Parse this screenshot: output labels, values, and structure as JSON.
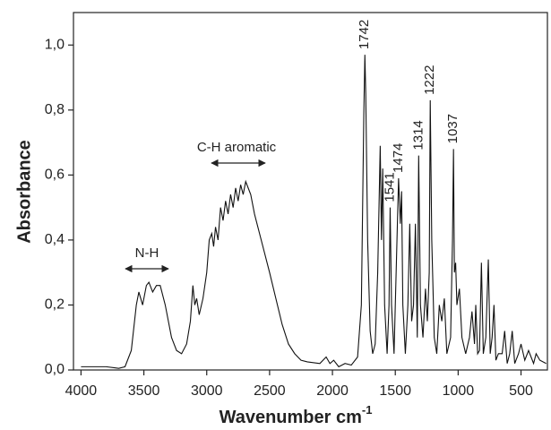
{
  "chart_data": {
    "type": "line",
    "xlabel": "Wavenumber cm",
    "xlabel_sup": "-1",
    "ylabel": "Absorbance",
    "annotations": [
      "N-H",
      "C-H aromatic"
    ],
    "color": "#111111",
    "xlim": [
      4060,
      290
    ],
    "ylim": [
      0,
      1.1
    ],
    "xticks": [
      4000,
      3500,
      3000,
      2500,
      2000,
      1500,
      1000,
      500
    ],
    "yticks": [
      {
        "value": 0,
        "label": "0,0"
      },
      {
        "value": 0.2,
        "label": "0,2"
      },
      {
        "value": 0.4,
        "label": "0,4"
      },
      {
        "value": 0.6,
        "label": "0,6"
      },
      {
        "value": 0.8,
        "label": "0,8"
      },
      {
        "value": 1.0,
        "label": "1,0"
      }
    ],
    "peaks": [
      1742,
      1541,
      1474,
      1314,
      1222,
      1037
    ],
    "x": [
      4000,
      3800,
      3700,
      3650,
      3600,
      3560,
      3540,
      3510,
      3480,
      3460,
      3430,
      3400,
      3370,
      3330,
      3280,
      3240,
      3200,
      3160,
      3130,
      3110,
      3095,
      3080,
      3060,
      3030,
      3000,
      2980,
      2960,
      2945,
      2930,
      2910,
      2890,
      2870,
      2850,
      2830,
      2810,
      2790,
      2770,
      2750,
      2730,
      2710,
      2690,
      2670,
      2650,
      2620,
      2580,
      2540,
      2500,
      2450,
      2400,
      2350,
      2300,
      2250,
      2200,
      2100,
      2050,
      2020,
      1990,
      1950,
      1900,
      1850,
      1800,
      1770,
      1750,
      1742,
      1735,
      1720,
      1700,
      1680,
      1660,
      1640,
      1620,
      1610,
      1600,
      1585,
      1565,
      1550,
      1541,
      1530,
      1510,
      1490,
      1474,
      1460,
      1450,
      1440,
      1420,
      1400,
      1385,
      1370,
      1355,
      1340,
      1325,
      1314,
      1300,
      1280,
      1260,
      1245,
      1230,
      1222,
      1210,
      1190,
      1170,
      1150,
      1130,
      1110,
      1090,
      1060,
      1045,
      1037,
      1030,
      1020,
      1010,
      990,
      970,
      940,
      910,
      890,
      870,
      860,
      845,
      830,
      815,
      800,
      780,
      760,
      745,
      730,
      715,
      700,
      680,
      650,
      630,
      610,
      590,
      570,
      550,
      520,
      500,
      470,
      440,
      420,
      400,
      380,
      350,
      300
    ],
    "values": [
      0.01,
      0.01,
      0.005,
      0.01,
      0.06,
      0.2,
      0.24,
      0.2,
      0.26,
      0.27,
      0.24,
      0.26,
      0.26,
      0.2,
      0.1,
      0.06,
      0.05,
      0.08,
      0.15,
      0.26,
      0.2,
      0.22,
      0.17,
      0.22,
      0.3,
      0.4,
      0.42,
      0.38,
      0.44,
      0.4,
      0.5,
      0.46,
      0.52,
      0.48,
      0.54,
      0.5,
      0.56,
      0.52,
      0.57,
      0.54,
      0.58,
      0.56,
      0.54,
      0.48,
      0.42,
      0.36,
      0.3,
      0.22,
      0.14,
      0.08,
      0.05,
      0.03,
      0.025,
      0.02,
      0.04,
      0.02,
      0.03,
      0.01,
      0.02,
      0.015,
      0.04,
      0.2,
      0.8,
      0.97,
      0.85,
      0.4,
      0.12,
      0.05,
      0.08,
      0.3,
      0.69,
      0.4,
      0.62,
      0.2,
      0.05,
      0.2,
      0.5,
      0.2,
      0.05,
      0.35,
      0.59,
      0.45,
      0.55,
      0.2,
      0.05,
      0.2,
      0.45,
      0.15,
      0.2,
      0.45,
      0.1,
      0.66,
      0.2,
      0.1,
      0.25,
      0.15,
      0.3,
      0.83,
      0.4,
      0.1,
      0.05,
      0.2,
      0.15,
      0.22,
      0.05,
      0.1,
      0.4,
      0.68,
      0.3,
      0.33,
      0.2,
      0.25,
      0.1,
      0.05,
      0.1,
      0.18,
      0.08,
      0.2,
      0.05,
      0.06,
      0.33,
      0.05,
      0.1,
      0.34,
      0.05,
      0.1,
      0.2,
      0.03,
      0.05,
      0.05,
      0.12,
      0.02,
      0.05,
      0.12,
      0.02,
      0.05,
      0.08,
      0.03,
      0.06,
      0.04,
      0.02,
      0.05,
      0.03,
      0.02
    ]
  }
}
